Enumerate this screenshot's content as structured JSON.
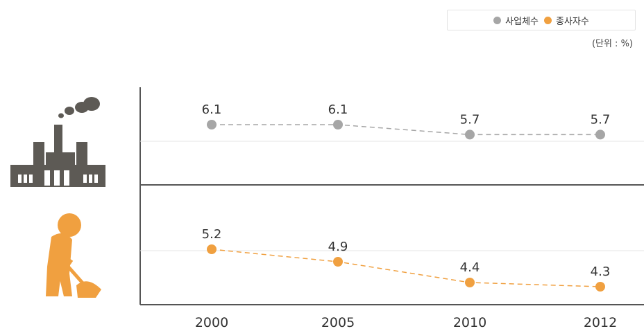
{
  "legend": {
    "items": [
      {
        "label": "사업체수",
        "color": "#a6a6a6"
      },
      {
        "label": "종사자수",
        "color": "#f0a040"
      }
    ]
  },
  "unit_note": "(단위 : %)",
  "icons": [
    "factory-icon",
    "worker-shovel-icon"
  ],
  "chart_data": {
    "type": "line",
    "x": [
      "2000",
      "2005",
      "2010",
      "2012"
    ],
    "series": [
      {
        "name": "사업체수",
        "color": "#a6a6a6",
        "values": [
          6.1,
          6.1,
          5.7,
          5.7
        ],
        "labels": [
          "6.1",
          "6.1",
          "5.7",
          "5.7"
        ]
      },
      {
        "name": "종사자수",
        "color": "#f0a040",
        "values": [
          5.2,
          4.9,
          4.4,
          4.3
        ],
        "labels": [
          "5.2",
          "4.9",
          "4.4",
          "4.3"
        ]
      }
    ],
    "line_style": "dashed",
    "grid": true
  }
}
